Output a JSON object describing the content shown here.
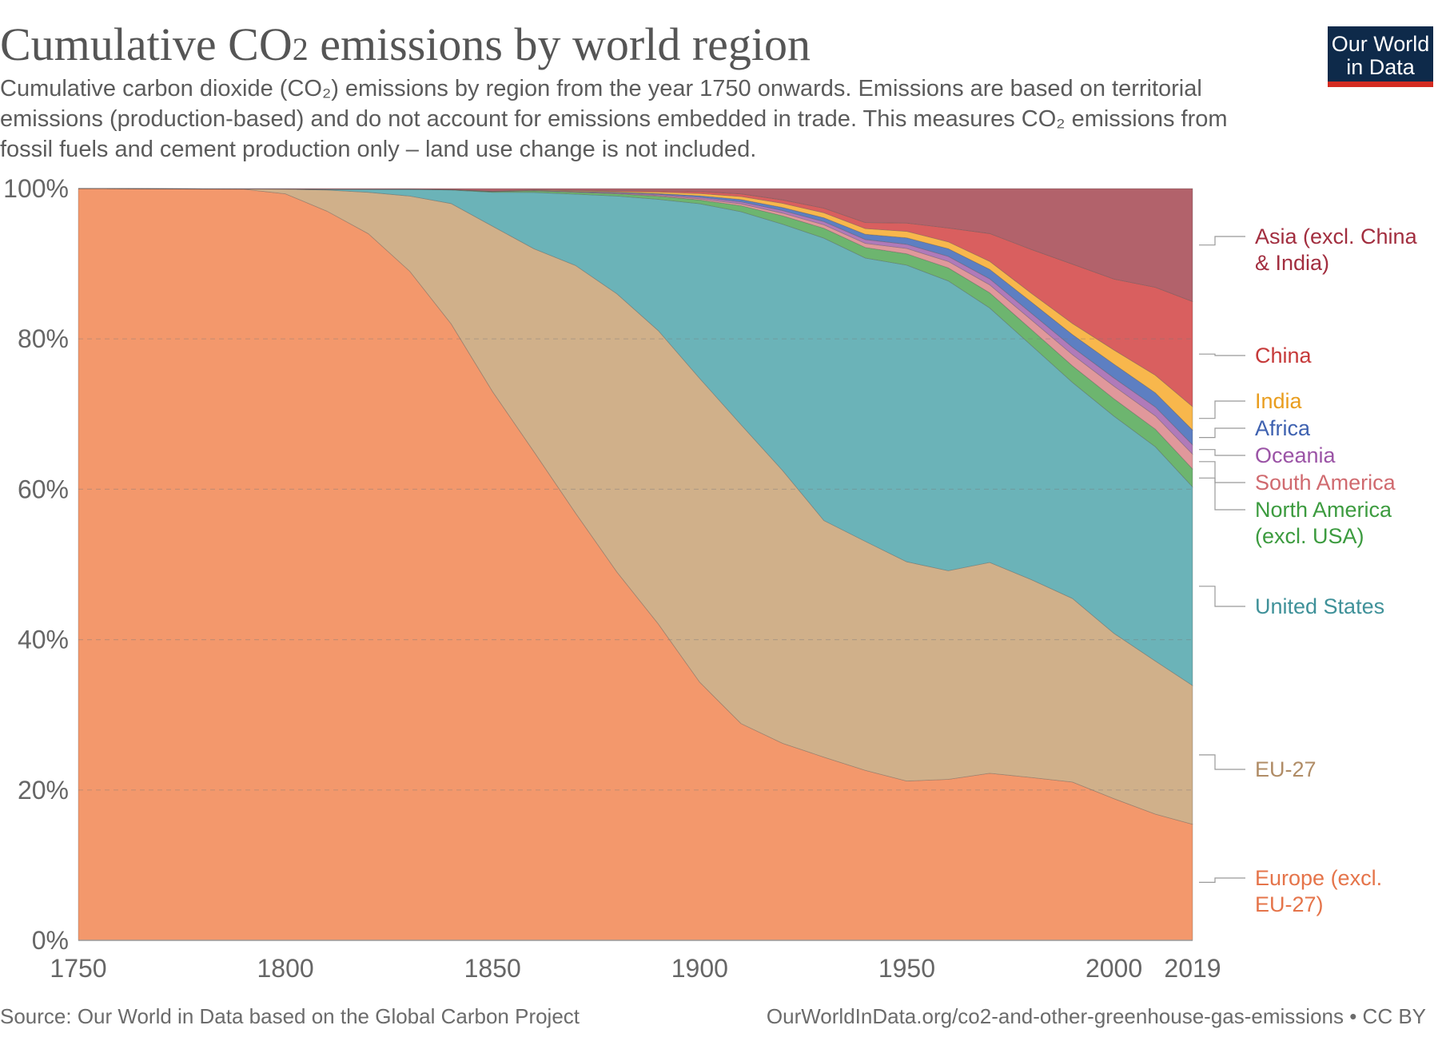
{
  "title_main": "Cumulative CO",
  "title_sub": "2",
  "title_rest": " emissions by world region",
  "subtitle": "Cumulative carbon dioxide (CO₂) emissions by region from the year 1750 onwards. Emissions are based on territorial emissions (production-based) and do not account for emissions embedded in trade. This measures CO₂ emissions from fossil fuels and cement production only – land use change is not included.",
  "logo": {
    "line1": "Our World",
    "line2": "in Data"
  },
  "footer": {
    "source": "Source: Our World in Data based on the Global Carbon Project",
    "url": "OurWorldInData.org/co2-and-other-greenhouse-gas-emissions • CC BY"
  },
  "chart_data": {
    "type": "area",
    "stacked": true,
    "normalized": true,
    "title": "Cumulative CO₂ emissions by world region",
    "ylabel": "",
    "xlabel": "",
    "x": [
      1750,
      1790,
      1800,
      1810,
      1820,
      1830,
      1840,
      1850,
      1860,
      1870,
      1880,
      1890,
      1900,
      1910,
      1920,
      1930,
      1940,
      1950,
      1960,
      1970,
      1980,
      1990,
      2000,
      2010,
      2019
    ],
    "ylim": [
      0,
      100
    ],
    "xlim": [
      1750,
      2019
    ],
    "x_ticks": [
      "1750",
      "1800",
      "1850",
      "1900",
      "1950",
      "2000",
      "2019"
    ],
    "y_ticks": [
      "0%",
      "20%",
      "40%",
      "60%",
      "80%",
      "100%"
    ],
    "grid": "horizontal dashed",
    "series": [
      {
        "name": "Europe (excl. EU-27)",
        "color": "#f3986c",
        "label_color": "#e5744a",
        "values": [
          100,
          99.9,
          99.3,
          97,
          94,
          89,
          82,
          73,
          65,
          57,
          49,
          41,
          34,
          29,
          26,
          24,
          22.5,
          21,
          21,
          21,
          20.5,
          20,
          18,
          16.5,
          14.9
        ]
      },
      {
        "name": "EU-27",
        "color": "#d0b08a",
        "label_color": "#b08c66",
        "values": [
          0,
          0.05,
          0.6,
          2.8,
          5.5,
          10,
          16,
          22,
          27,
          33,
          37,
          38,
          40,
          40,
          36,
          31,
          30.3,
          28.9,
          27.2,
          26.5,
          24.9,
          23.2,
          21,
          20,
          17.8
        ]
      },
      {
        "name": "United States",
        "color": "#6bb3b8",
        "label_color": "#3f9199",
        "values": [
          0,
          0,
          0.05,
          0.1,
          0.4,
          0.9,
          1.8,
          4.5,
          7.5,
          9.5,
          13,
          17,
          23,
          28.5,
          32.5,
          37,
          37.5,
          39.1,
          37.8,
          32,
          29.5,
          27.3,
          27.6,
          28,
          25.5
        ]
      },
      {
        "name": "North America (excl. USA)",
        "color": "#6db56f",
        "label_color": "#3c9b3f",
        "values": [
          0,
          0,
          0,
          0,
          0,
          0.02,
          0.05,
          0.1,
          0.2,
          0.25,
          0.3,
          0.4,
          0.5,
          0.8,
          1.1,
          1.3,
          1.4,
          1.5,
          1.7,
          1.9,
          2,
          2.1,
          2.2,
          2.3,
          2.3
        ]
      },
      {
        "name": "South America",
        "color": "#e0989b",
        "label_color": "#d06a6f",
        "values": [
          0,
          0,
          0,
          0,
          0,
          0,
          0,
          0.01,
          0.02,
          0.03,
          0.05,
          0.1,
          0.15,
          0.25,
          0.35,
          0.45,
          0.55,
          0.7,
          0.85,
          1,
          1.2,
          1.4,
          1.6,
          1.75,
          1.9
        ]
      },
      {
        "name": "Oceania",
        "color": "#b07ab9",
        "label_color": "#9b54a6",
        "values": [
          0,
          0,
          0,
          0,
          0,
          0,
          0,
          0.02,
          0.04,
          0.06,
          0.1,
          0.15,
          0.2,
          0.28,
          0.35,
          0.42,
          0.5,
          0.55,
          0.65,
          0.75,
          0.85,
          0.95,
          1.05,
          1.15,
          1.2
        ]
      },
      {
        "name": "Africa",
        "color": "#5d7fc2",
        "label_color": "#3f62b0",
        "values": [
          0,
          0,
          0,
          0,
          0,
          0,
          0,
          0,
          0.01,
          0.03,
          0.06,
          0.1,
          0.2,
          0.3,
          0.4,
          0.5,
          0.7,
          0.85,
          1,
          1.2,
          1.4,
          1.6,
          1.75,
          1.85,
          1.9
        ]
      },
      {
        "name": "India",
        "color": "#f8b74c",
        "label_color": "#e99d1e",
        "values": [
          0,
          0,
          0,
          0,
          0,
          0,
          0,
          0.01,
          0.05,
          0.08,
          0.1,
          0.2,
          0.3,
          0.4,
          0.55,
          0.65,
          0.75,
          0.85,
          0.9,
          1,
          1.1,
          1.4,
          1.8,
          2.3,
          3
        ]
      },
      {
        "name": "China",
        "color": "#d95f5f",
        "label_color": "#c63a3a",
        "values": [
          0,
          0,
          0,
          0,
          0,
          0,
          0,
          0.01,
          0.03,
          0.05,
          0.1,
          0.15,
          0.25,
          0.35,
          0.45,
          0.6,
          0.8,
          1.1,
          1.8,
          3.5,
          5.5,
          7.5,
          9,
          11.5,
          13.5
        ]
      },
      {
        "name": "Asia (excl. China & India)",
        "color": "#b2626b",
        "label_color": "#a22e3f",
        "values": [
          0,
          0.05,
          0.05,
          0.1,
          0.1,
          0.08,
          0.15,
          0.35,
          0.16,
          0.25,
          0.29,
          0.3,
          0.4,
          0.72,
          1.5,
          2.58,
          4.5,
          4.55,
          5.15,
          5.65,
          7.65,
          9.55,
          11.5,
          12.9,
          14.5
        ]
      }
    ],
    "legend": [
      {
        "lines": [
          "Asia (excl. China",
          "& India)"
        ],
        "color": "#a22e3f"
      },
      {
        "lines": [
          "China"
        ],
        "color": "#c63a3a"
      },
      {
        "lines": [
          "India"
        ],
        "color": "#e99d1e"
      },
      {
        "lines": [
          "Africa"
        ],
        "color": "#3f62b0"
      },
      {
        "lines": [
          "Oceania"
        ],
        "color": "#9b54a6"
      },
      {
        "lines": [
          "South America"
        ],
        "color": "#d06a6f"
      },
      {
        "lines": [
          "North America",
          "(excl. USA)"
        ],
        "color": "#3c9b3f"
      },
      {
        "lines": [
          "United States"
        ],
        "color": "#3f9199"
      },
      {
        "lines": [
          "EU-27"
        ],
        "color": "#b08c66"
      },
      {
        "lines": [
          "Europe (excl.",
          "EU-27)"
        ],
        "color": "#e5744a"
      }
    ]
  }
}
